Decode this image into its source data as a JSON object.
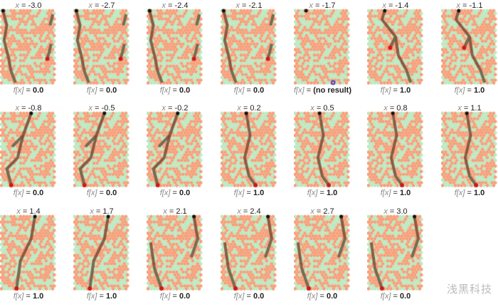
{
  "x_label": "x",
  "f_label": "f[x]",
  "colors": {
    "orange": "#f5a07a",
    "green": "#bde8c0",
    "path": "#7a4a34",
    "path_shaded": "#5f7a60",
    "start": "#111111",
    "end": "#cc1a1a",
    "no_result_marker": "#2a2ad0"
  },
  "panels": [
    {
      "x": "-3.0",
      "f": "0.0"
    },
    {
      "x": "-2.7",
      "f": "0.0"
    },
    {
      "x": "-2.4",
      "f": "0.0"
    },
    {
      "x": "-2.1",
      "f": "0.0"
    },
    {
      "x": "-1.7",
      "f": "(no result)"
    },
    {
      "x": "-1.4",
      "f": "1.0"
    },
    {
      "x": "-1.1",
      "f": "1.0"
    },
    {
      "x": "-0.8",
      "f": "0.0"
    },
    {
      "x": "-0.5",
      "f": "0.0"
    },
    {
      "x": "-0.2",
      "f": "0.0"
    },
    {
      "x": "0.2",
      "f": "1.0"
    },
    {
      "x": "0.5",
      "f": "1.0"
    },
    {
      "x": "0.8",
      "f": "1.0"
    },
    {
      "x": "1.1",
      "f": "1.0"
    },
    {
      "x": "1.4",
      "f": "1.0"
    },
    {
      "x": "1.7",
      "f": "1.0"
    },
    {
      "x": "2.1",
      "f": "0.0"
    },
    {
      "x": "2.4",
      "f": "0.0"
    },
    {
      "x": "2.7",
      "f": "0.0"
    },
    {
      "x": "3.0",
      "f": "0.0"
    }
  ],
  "watermark": "浅黑科技"
}
